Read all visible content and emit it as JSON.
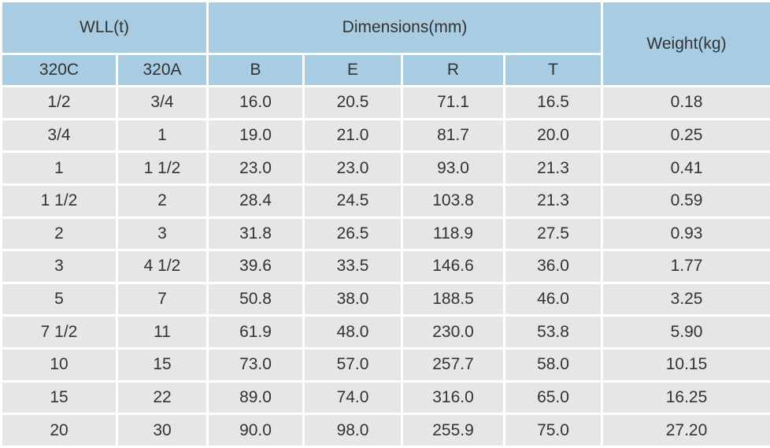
{
  "table": {
    "groups": [
      "WLL(t)",
      "Dimensions(mm)",
      "Weight(kg)"
    ],
    "columns": [
      "320C",
      "320A",
      "B",
      "E",
      "R",
      "T"
    ],
    "rows": [
      [
        "1/2",
        "3/4",
        "16.0",
        "20.5",
        "71.1",
        "16.5",
        "0.18"
      ],
      [
        "3/4",
        "1",
        "19.0",
        "21.0",
        "81.7",
        "20.0",
        "0.25"
      ],
      [
        "1",
        "1 1/2",
        "23.0",
        "23.0",
        "93.0",
        "21.3",
        "0.41"
      ],
      [
        "1 1/2",
        "2",
        "28.4",
        "24.5",
        "103.8",
        "21.3",
        "0.59"
      ],
      [
        "2",
        "3",
        "31.8",
        "26.5",
        "118.9",
        "27.5",
        "0.93"
      ],
      [
        "3",
        "4 1/2",
        "39.6",
        "33.5",
        "146.6",
        "36.0",
        "1.77"
      ],
      [
        "5",
        "7",
        "50.8",
        "38.0",
        "188.5",
        "46.0",
        "3.25"
      ],
      [
        "7 1/2",
        "11",
        "61.9",
        "48.0",
        "230.0",
        "53.8",
        "5.90"
      ],
      [
        "10",
        "15",
        "73.0",
        "57.0",
        "257.7",
        "58.0",
        "10.15"
      ],
      [
        "15",
        "22",
        "89.0",
        "74.0",
        "316.0",
        "65.0",
        "16.25"
      ],
      [
        "20",
        "30",
        "90.0",
        "98.0",
        "255.9",
        "75.0",
        "27.20"
      ]
    ]
  }
}
